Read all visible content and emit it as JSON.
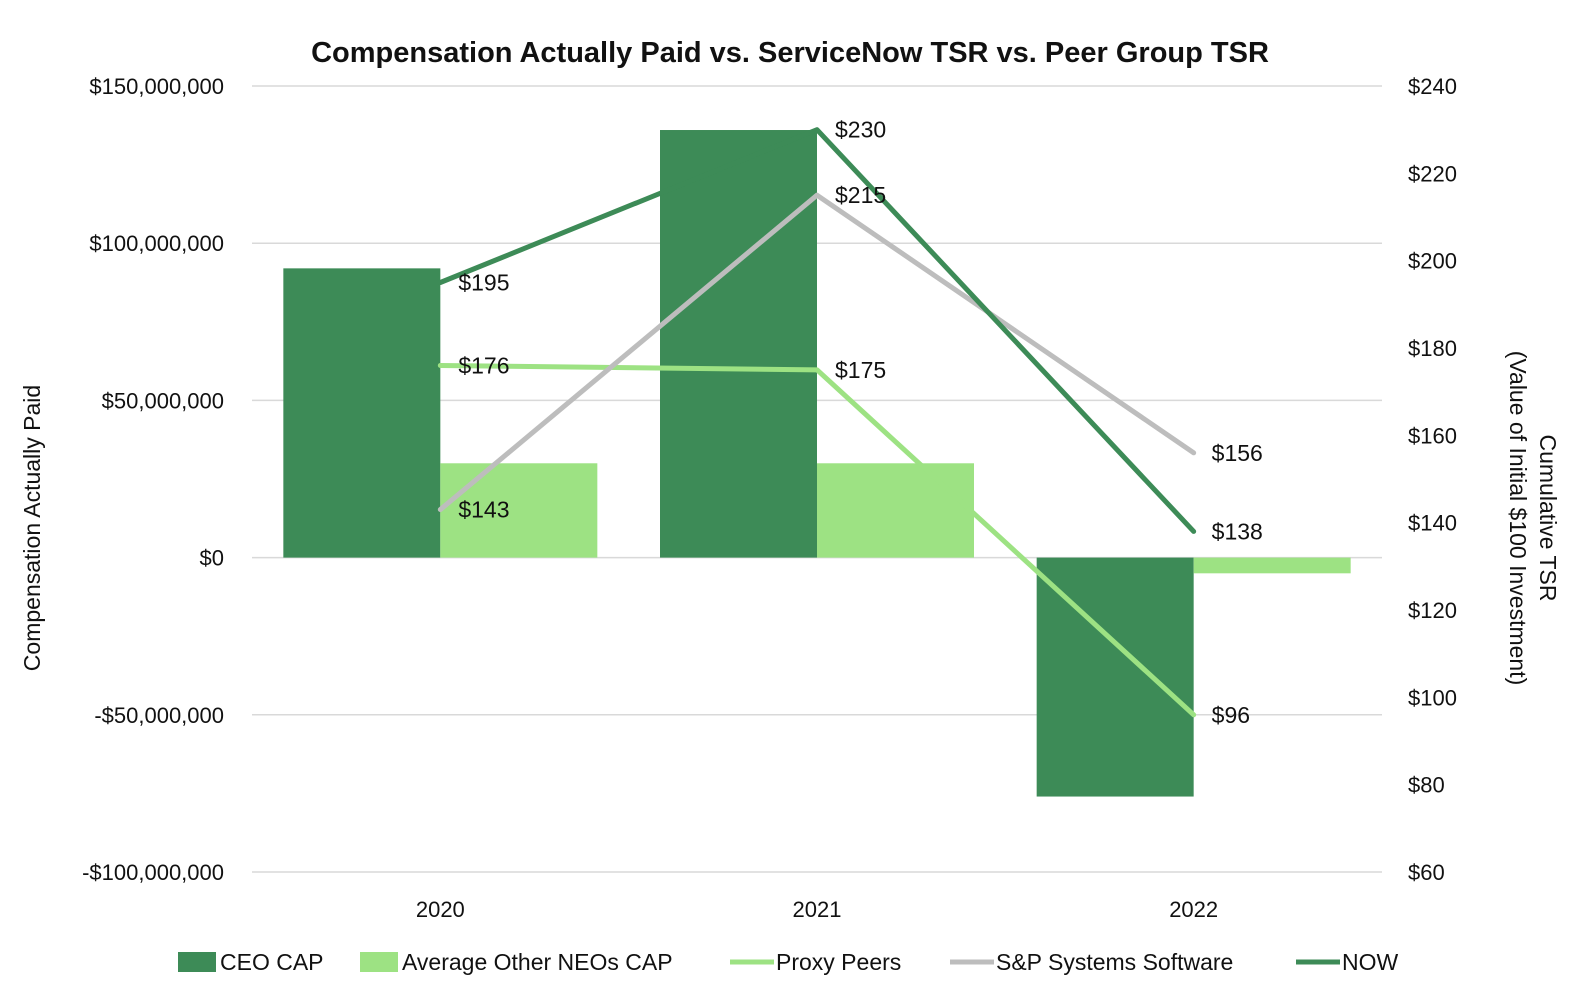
{
  "chart_data": {
    "type": "bar",
    "title": "Compensation Actually Paid vs. ServiceNow TSR vs. Peer Group TSR",
    "categories": [
      "2020",
      "2021",
      "2022"
    ],
    "y_left": {
      "label": "Compensation Actually Paid",
      "min": -100000000,
      "max": 150000000,
      "ticks": [
        150000000,
        100000000,
        50000000,
        0,
        -50000000,
        -100000000
      ],
      "tick_labels": [
        "$150,000,000",
        "$100,000,000",
        "$50,000,000",
        "$0",
        "-$50,000,000",
        "-$100,000,000"
      ]
    },
    "y_right": {
      "label_line1": "Cumulative TSR",
      "label_line2": "(Value of Initial $100 Investment)",
      "min": 60,
      "max": 240,
      "ticks": [
        240,
        220,
        200,
        180,
        160,
        140,
        120,
        100,
        80,
        60
      ],
      "tick_labels": [
        "$240",
        "$220",
        "$200",
        "$180",
        "$160",
        "$140",
        "$120",
        "$100",
        "$80",
        "$60"
      ]
    },
    "bar_series": [
      {
        "name": "CEO CAP",
        "color": "#3d8b57",
        "values": [
          92000000,
          136000000,
          -76000000
        ]
      },
      {
        "name": "Average Other NEOs CAP",
        "color": "#9de283",
        "values": [
          30000000,
          30000000,
          -5000000
        ]
      }
    ],
    "line_series": [
      {
        "name": "Proxy Peers",
        "color": "#9de283",
        "values": [
          176,
          175,
          96
        ],
        "labels": [
          "$176",
          "$175",
          "$96"
        ]
      },
      {
        "name": "S&P Systems Software",
        "color": "#bdbdbd",
        "values": [
          143,
          215,
          156
        ],
        "labels": [
          "$143",
          "$215",
          "$156"
        ]
      },
      {
        "name": "NOW",
        "color": "#3d8b57",
        "values": [
          195,
          230,
          138
        ],
        "labels": [
          "$195",
          "$230",
          "$138"
        ]
      }
    ],
    "legend": {
      "position": "bottom",
      "items": [
        {
          "name": "CEO CAP",
          "kind": "bar",
          "color": "#3d8b57"
        },
        {
          "name": "Average Other NEOs CAP",
          "kind": "bar",
          "color": "#9de283"
        },
        {
          "name": "Proxy Peers",
          "kind": "line",
          "color": "#9de283"
        },
        {
          "name": "S&P Systems Software",
          "kind": "line",
          "color": "#bdbdbd"
        },
        {
          "name": "NOW",
          "kind": "line",
          "color": "#3d8b57"
        }
      ]
    },
    "grid": true
  }
}
